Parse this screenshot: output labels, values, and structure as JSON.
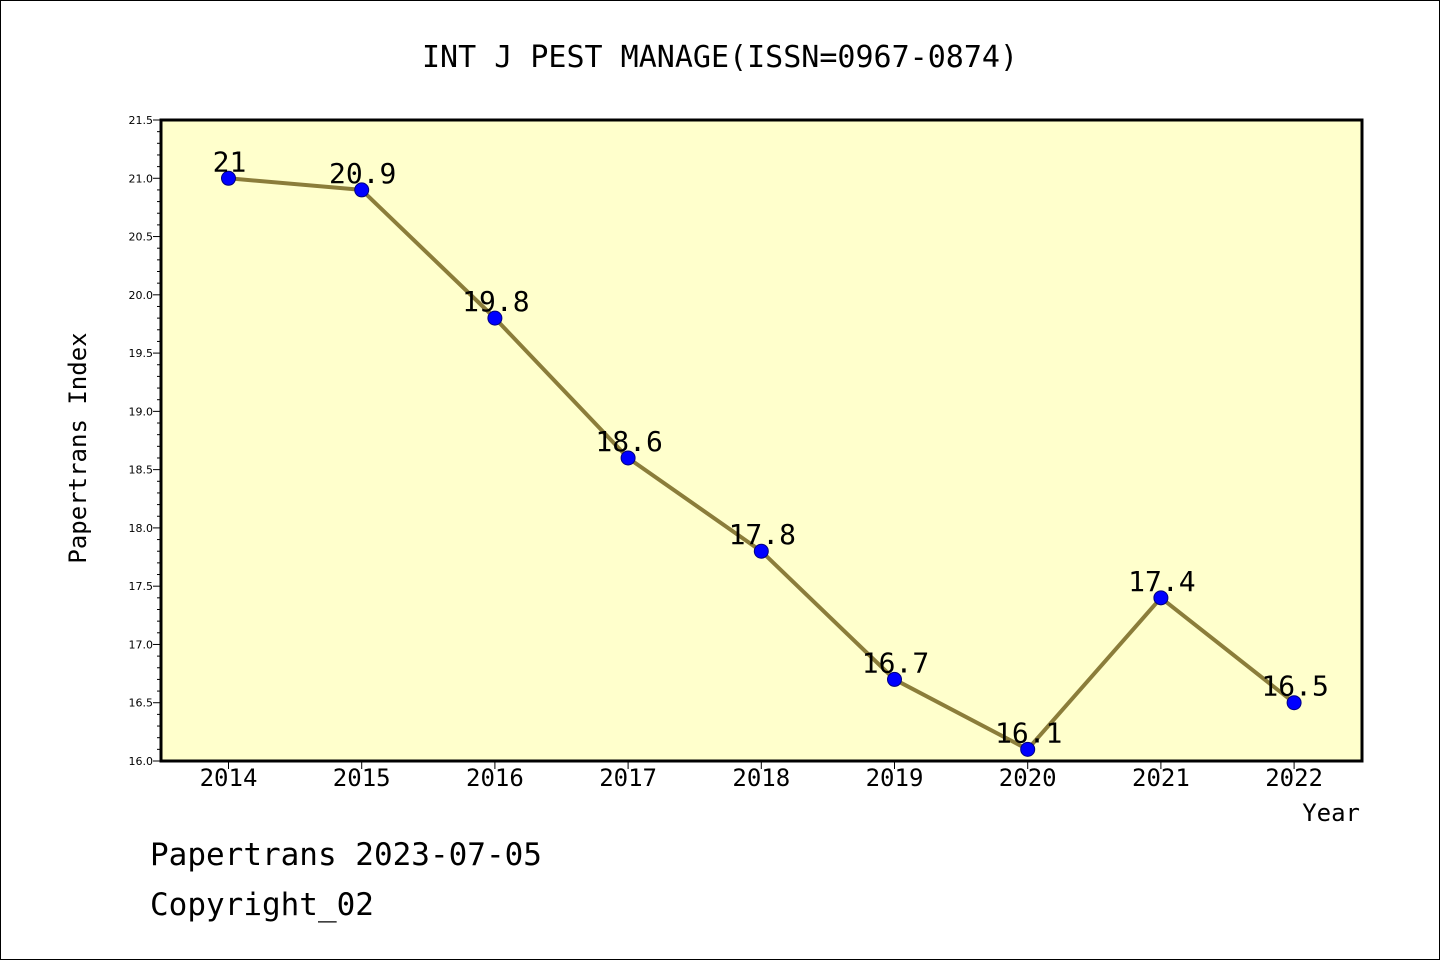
{
  "colors": {
    "plot_background": "#ffffcc",
    "line": "#8b7d3a",
    "marker": "#0000ff",
    "marker_edge": "#000080"
  },
  "footer": {
    "line1": "Papertrans 2023-07-05",
    "line2": "Copyright_02"
  },
  "chart_data": {
    "type": "line",
    "title": "INT J PEST MANAGE(ISSN=0967-0874)",
    "xlabel": "Year",
    "ylabel": "Papertrans Index",
    "x": [
      "2014",
      "2015",
      "2016",
      "2017",
      "2018",
      "2019",
      "2020",
      "2021",
      "2022"
    ],
    "series": [
      {
        "values": [
          21,
          20.9,
          19.8,
          18.6,
          17.8,
          16.7,
          16.1,
          17.4,
          16.5
        ],
        "labels": [
          "21",
          "20.9",
          "19.8",
          "18.6",
          "17.8",
          "16.7",
          "16.1",
          "17.4",
          "16.5"
        ]
      }
    ],
    "ylim": [
      16.0,
      21.5
    ],
    "yticks": [
      "16.0",
      "16.5",
      "17.0",
      "17.5",
      "18.0",
      "18.5",
      "19.0",
      "19.5",
      "20.0",
      "20.5",
      "21.0",
      "21.5"
    ],
    "grid": false,
    "legend": "none"
  }
}
